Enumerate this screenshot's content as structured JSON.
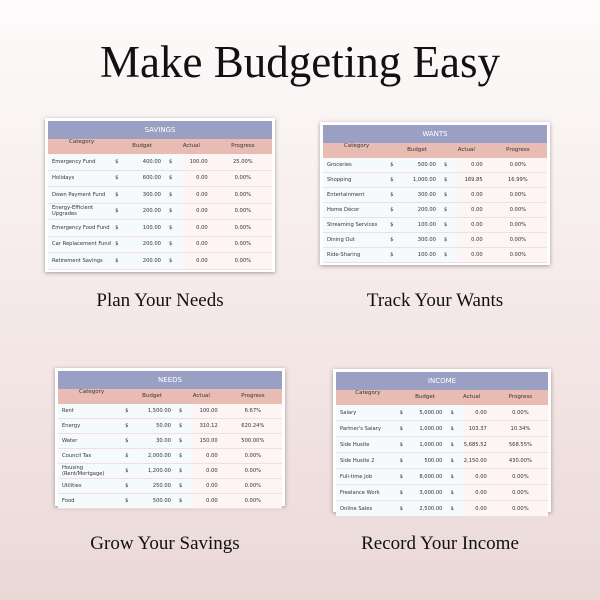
{
  "title": "Make Budgeting Easy",
  "captions": [
    "Plan Your Needs",
    "Track Your Wants",
    "Grow Your Savings",
    "Record Your Income"
  ],
  "colors": {
    "header": "#9aa0c4",
    "column_header": "#e9bcb3"
  },
  "columns": [
    "Category",
    "Budget",
    "Actual",
    "Progress"
  ],
  "tables": [
    {
      "title": "SAVINGS",
      "rows": [
        [
          "Emergency Fund",
          "$",
          "400.00",
          "$",
          "100.00",
          "25.00%"
        ],
        [
          "Holidays",
          "$",
          "600.00",
          "$",
          "0.00",
          "0.00%"
        ],
        [
          "Down Payment Fund",
          "$",
          "300.00",
          "$",
          "0.00",
          "0.00%"
        ],
        [
          "Energy-Efficient Upgrades",
          "$",
          "200.00",
          "$",
          "0.00",
          "0.00%"
        ],
        [
          "Emergency Food Fund",
          "$",
          "100.00",
          "$",
          "0.00",
          "0.00%"
        ],
        [
          "Car Replacement Fund",
          "$",
          "200.00",
          "$",
          "0.00",
          "0.00%"
        ],
        [
          "Retirement Savings",
          "$",
          "200.00",
          "$",
          "0.00",
          "0.00%"
        ]
      ]
    },
    {
      "title": "WANTS",
      "rows": [
        [
          "Groceries",
          "$",
          "500.00",
          "$",
          "0.00",
          "0.00%"
        ],
        [
          "Shopping",
          "$",
          "1,000.00",
          "$",
          "169.85",
          "16.99%"
        ],
        [
          "Entertainment",
          "$",
          "300.00",
          "$",
          "0.00",
          "0.00%"
        ],
        [
          "Home Décor",
          "$",
          "200.00",
          "$",
          "0.00",
          "0.00%"
        ],
        [
          "Streaming Services",
          "$",
          "100.00",
          "$",
          "0.00",
          "0.00%"
        ],
        [
          "Dining Out",
          "$",
          "300.00",
          "$",
          "0.00",
          "0.00%"
        ],
        [
          "Ride-Sharing",
          "$",
          "100.00",
          "$",
          "0.00",
          "0.00%"
        ]
      ]
    },
    {
      "title": "NEEDS",
      "rows": [
        [
          "Rent",
          "$",
          "1,500.00",
          "$",
          "100.00",
          "6.67%"
        ],
        [
          "Energy",
          "$",
          "50.00",
          "$",
          "310.12",
          "620.24%"
        ],
        [
          "Water",
          "$",
          "30.00",
          "$",
          "150.00",
          "500.00%"
        ],
        [
          "Council Tax",
          "$",
          "2,000.00",
          "$",
          "0.00",
          "0.00%"
        ],
        [
          "Housing (Rent/Mortgage)",
          "$",
          "1,200.00",
          "$",
          "0.00",
          "0.00%"
        ],
        [
          "Utilities",
          "$",
          "250.00",
          "$",
          "0.00",
          "0.00%"
        ],
        [
          "Food",
          "$",
          "500.00",
          "$",
          "0.00",
          "0.00%"
        ]
      ]
    },
    {
      "title": "INCOME",
      "rows": [
        [
          "Salary",
          "$",
          "5,000.00",
          "$",
          "0.00",
          "0.00%"
        ],
        [
          "Partner's Salary",
          "$",
          "1,000.00",
          "$",
          "103.37",
          "10.34%"
        ],
        [
          "Side Hustle",
          "$",
          "1,000.00",
          "$",
          "5,685.52",
          "568.55%"
        ],
        [
          "Side Hustle 2",
          "$",
          "500.00",
          "$",
          "2,150.00",
          "430.00%"
        ],
        [
          "Full-time Job",
          "$",
          "8,000.00",
          "$",
          "0.00",
          "0.00%"
        ],
        [
          "Freelance Work",
          "$",
          "3,000.00",
          "$",
          "0.00",
          "0.00%"
        ],
        [
          "Online Sales",
          "$",
          "2,500.00",
          "$",
          "0.00",
          "0.00%"
        ]
      ]
    }
  ]
}
